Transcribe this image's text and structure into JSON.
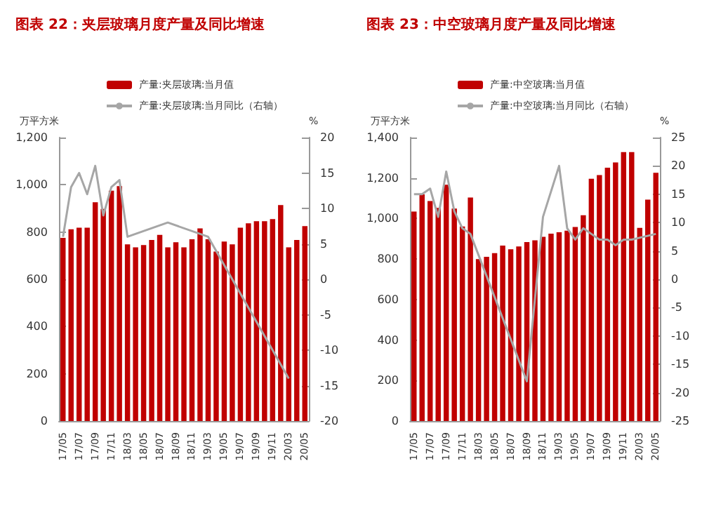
{
  "chart_data": [
    {
      "type": "bar",
      "title": "图表 22：夹层玻璃月度产量及同比增速",
      "ylabel": "万平方米",
      "y2label": "%",
      "legend": "top",
      "categories": [
        "17/05",
        null,
        "17/07",
        null,
        "17/09",
        null,
        "17/11",
        null,
        "18/03",
        null,
        "18/05",
        null,
        "18/07",
        null,
        "18/09",
        null,
        "18/11",
        null,
        "19/03",
        null,
        "19/05",
        null,
        "19/07",
        null,
        "19/09",
        null,
        "19/11",
        null,
        "20/03",
        null,
        "20/05"
      ],
      "series": [
        {
          "name": "产量:夹层玻璃:当月值",
          "color": "#c00000",
          "values": [
            775,
            812,
            818,
            818,
            926,
            898,
            975,
            994,
            748,
            735,
            745,
            766,
            788,
            735,
            757,
            735,
            769,
            815,
            769,
            717,
            760,
            748,
            818,
            837,
            846,
            846,
            855,
            914,
            735,
            766,
            825
          ]
        },
        {
          "name": "产量:夹层玻璃:当月同比（右轴）",
          "type": "line",
          "axis": "y2",
          "color": "#a6a6a6",
          "values": [
            6,
            13,
            15,
            12,
            16,
            9,
            13,
            14,
            6,
            null,
            null,
            null,
            null,
            8,
            null,
            null,
            null,
            null,
            6,
            null,
            null,
            null,
            null,
            null,
            null,
            null,
            null,
            null,
            -14,
            null,
            null
          ]
        }
      ],
      "ylim": [
        0,
        1200
      ],
      "yticks": [
        0,
        200,
        400,
        600,
        800,
        {
          "value": 1000,
          "label": "1,000"
        },
        {
          "value": 1200,
          "label": "1,200"
        }
      ],
      "y2lim": [
        -20,
        20
      ],
      "y2ticks": [
        -20,
        -15,
        -10,
        -5,
        0,
        5,
        10,
        15,
        20
      ]
    },
    {
      "type": "bar",
      "title": "图表 23：中空玻璃月度产量及同比增速",
      "ylabel": "万平方米",
      "y2label": "%",
      "legend": "top",
      "categories": [
        "17/05",
        null,
        "17/07",
        null,
        "17/09",
        null,
        "17/11",
        null,
        "18/03",
        null,
        "18/05",
        null,
        "18/07",
        null,
        "18/09",
        null,
        "18/11",
        null,
        "19/03",
        null,
        "19/05",
        null,
        "19/07",
        null,
        "19/09",
        null,
        "19/11",
        null,
        "20/03",
        null,
        "20/05"
      ],
      "series": [
        {
          "name": "产量:中空玻璃:当月值",
          "color": "#c00000",
          "values": [
            1034,
            1119,
            1086,
            1053,
            1167,
            1049,
            961,
            1104,
            800,
            811,
            829,
            866,
            848,
            862,
            884,
            892,
            910,
            925,
            932,
            940,
            958,
            1016,
            1196,
            1215,
            1251,
            1277,
            1328,
            1328,
            954,
            1093,
            1226
          ]
        },
        {
          "name": "产量:中空玻璃:当月同比（右轴）",
          "type": "line",
          "axis": "y2",
          "color": "#a6a6a6",
          "values": [
            15,
            15,
            16,
            11,
            19,
            12,
            9,
            8,
            null,
            null,
            null,
            null,
            null,
            null,
            -18,
            null,
            11,
            null,
            20,
            9,
            7,
            9,
            8,
            7,
            7,
            6,
            7,
            7,
            null,
            null,
            8
          ]
        }
      ],
      "ylim": [
        0,
        1400
      ],
      "yticks": [
        0,
        200,
        400,
        600,
        800,
        {
          "value": 1000,
          "label": "1,000"
        },
        {
          "value": 1200,
          "label": "1,200"
        },
        {
          "value": 1400,
          "label": "1,400"
        }
      ],
      "y2lim": [
        -25,
        25
      ],
      "y2ticks": [
        -25,
        -20,
        -15,
        -10,
        -5,
        0,
        5,
        10,
        15,
        20,
        25
      ]
    }
  ]
}
